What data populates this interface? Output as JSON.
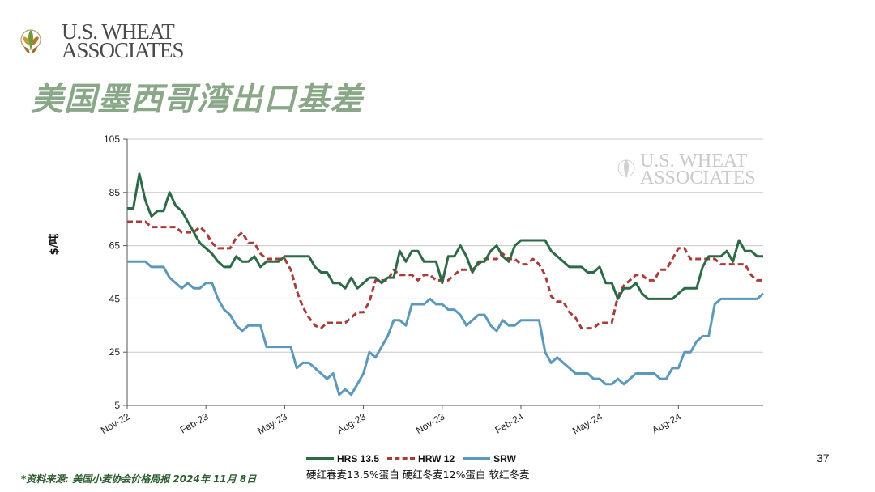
{
  "header": {
    "logo_line1": "U.S. WHEAT",
    "logo_line2": "ASSOCIATES",
    "title": "美国墨西哥湾出口基差"
  },
  "watermark": {
    "line1": "U.S. WHEAT",
    "line2": "ASSOCIATES"
  },
  "footer": {
    "source": "*资料来源: 美国小麦协会价格周报 2024年 11月 8日",
    "page_number": "37"
  },
  "legend": {
    "subtitle": "硬红春麦13.5%蛋白  硬红冬麦12%蛋白  软红冬麦"
  },
  "colors": {
    "hrs": "#2d6a45",
    "hrw": "#a83c3a",
    "srw": "#5b98bb",
    "title": "#8aa888"
  },
  "chart_data": {
    "type": "line",
    "ylabel": "$/吨",
    "xlabel": "",
    "ylim": [
      5,
      105
    ],
    "yticks": [
      5,
      25,
      45,
      65,
      85,
      105
    ],
    "x_tick_labels": [
      "Nov-22",
      "Feb-23",
      "May-23",
      "Aug-23",
      "Nov-23",
      "Feb-24",
      "May-24",
      "Aug-24"
    ],
    "x_tick_index": [
      0,
      13,
      26,
      39,
      52,
      65,
      78,
      91
    ],
    "series": [
      {
        "name": "HRS 13.5",
        "style": "solid",
        "color": "#2d6a45",
        "values": [
          79,
          79,
          92,
          82,
          76,
          78,
          78,
          85,
          80,
          78,
          74,
          70,
          66,
          64,
          62,
          59,
          57,
          57,
          61,
          59,
          59,
          61,
          57,
          59,
          59,
          59,
          61,
          61,
          61,
          61,
          61,
          57,
          55,
          55,
          51,
          51,
          49,
          53,
          49,
          51,
          53,
          53,
          51,
          53,
          53,
          63,
          59,
          63,
          63,
          59,
          59,
          59,
          51,
          61,
          61,
          65,
          61,
          55,
          59,
          59,
          63,
          65,
          61,
          59,
          65,
          67,
          67,
          67,
          67,
          67,
          63,
          61,
          59,
          57,
          57,
          57,
          55,
          55,
          57,
          51,
          51,
          45,
          49,
          49,
          51,
          47,
          45,
          45,
          45,
          45,
          45,
          47,
          49,
          49,
          49,
          57,
          61,
          61,
          61,
          63,
          59,
          67,
          63,
          63,
          61,
          61
        ]
      },
      {
        "name": "HRW 12",
        "style": "dashed",
        "color": "#a83c3a",
        "values": [
          74,
          74,
          74,
          74,
          72,
          72,
          72,
          72,
          72,
          70,
          70,
          70,
          72,
          70,
          66,
          64,
          64,
          64,
          68,
          70,
          66,
          66,
          62,
          60,
          60,
          60,
          60,
          56,
          48,
          42,
          38,
          35,
          34,
          36,
          36,
          36,
          36,
          38,
          40,
          40,
          44,
          52,
          52,
          52,
          56,
          54,
          54,
          54,
          52,
          54,
          54,
          52,
          52,
          52,
          54,
          56,
          56,
          56,
          58,
          60,
          60,
          60,
          62,
          60,
          60,
          58,
          58,
          60,
          58,
          54,
          46,
          44,
          44,
          40,
          38,
          34,
          34,
          34,
          36,
          36,
          36,
          46,
          50,
          52,
          54,
          54,
          52,
          52,
          56,
          56,
          60,
          64,
          64,
          60,
          60,
          60,
          60,
          60,
          58,
          58,
          58,
          58,
          58,
          54,
          52,
          52
        ]
      },
      {
        "name": "SRW",
        "style": "solid",
        "color": "#5b98bb",
        "values": [
          59,
          59,
          59,
          59,
          57,
          57,
          57,
          53,
          51,
          49,
          51,
          49,
          49,
          51,
          51,
          45,
          41,
          39,
          35,
          33,
          35,
          35,
          35,
          27,
          27,
          27,
          27,
          27,
          19,
          21,
          21,
          19,
          17,
          15,
          17,
          9,
          11,
          9,
          13,
          17,
          25,
          23,
          27,
          31,
          37,
          37,
          35,
          43,
          43,
          43,
          45,
          43,
          43,
          41,
          41,
          39,
          35,
          37,
          39,
          39,
          35,
          33,
          37,
          35,
          35,
          37,
          37,
          37,
          37,
          25,
          21,
          23,
          21,
          19,
          17,
          17,
          17,
          15,
          15,
          13,
          13,
          15,
          13,
          15,
          17,
          17,
          17,
          17,
          15,
          15,
          19,
          19,
          25,
          25,
          29,
          31,
          31,
          43,
          45,
          45,
          45,
          45,
          45,
          45,
          45,
          47
        ]
      }
    ]
  }
}
